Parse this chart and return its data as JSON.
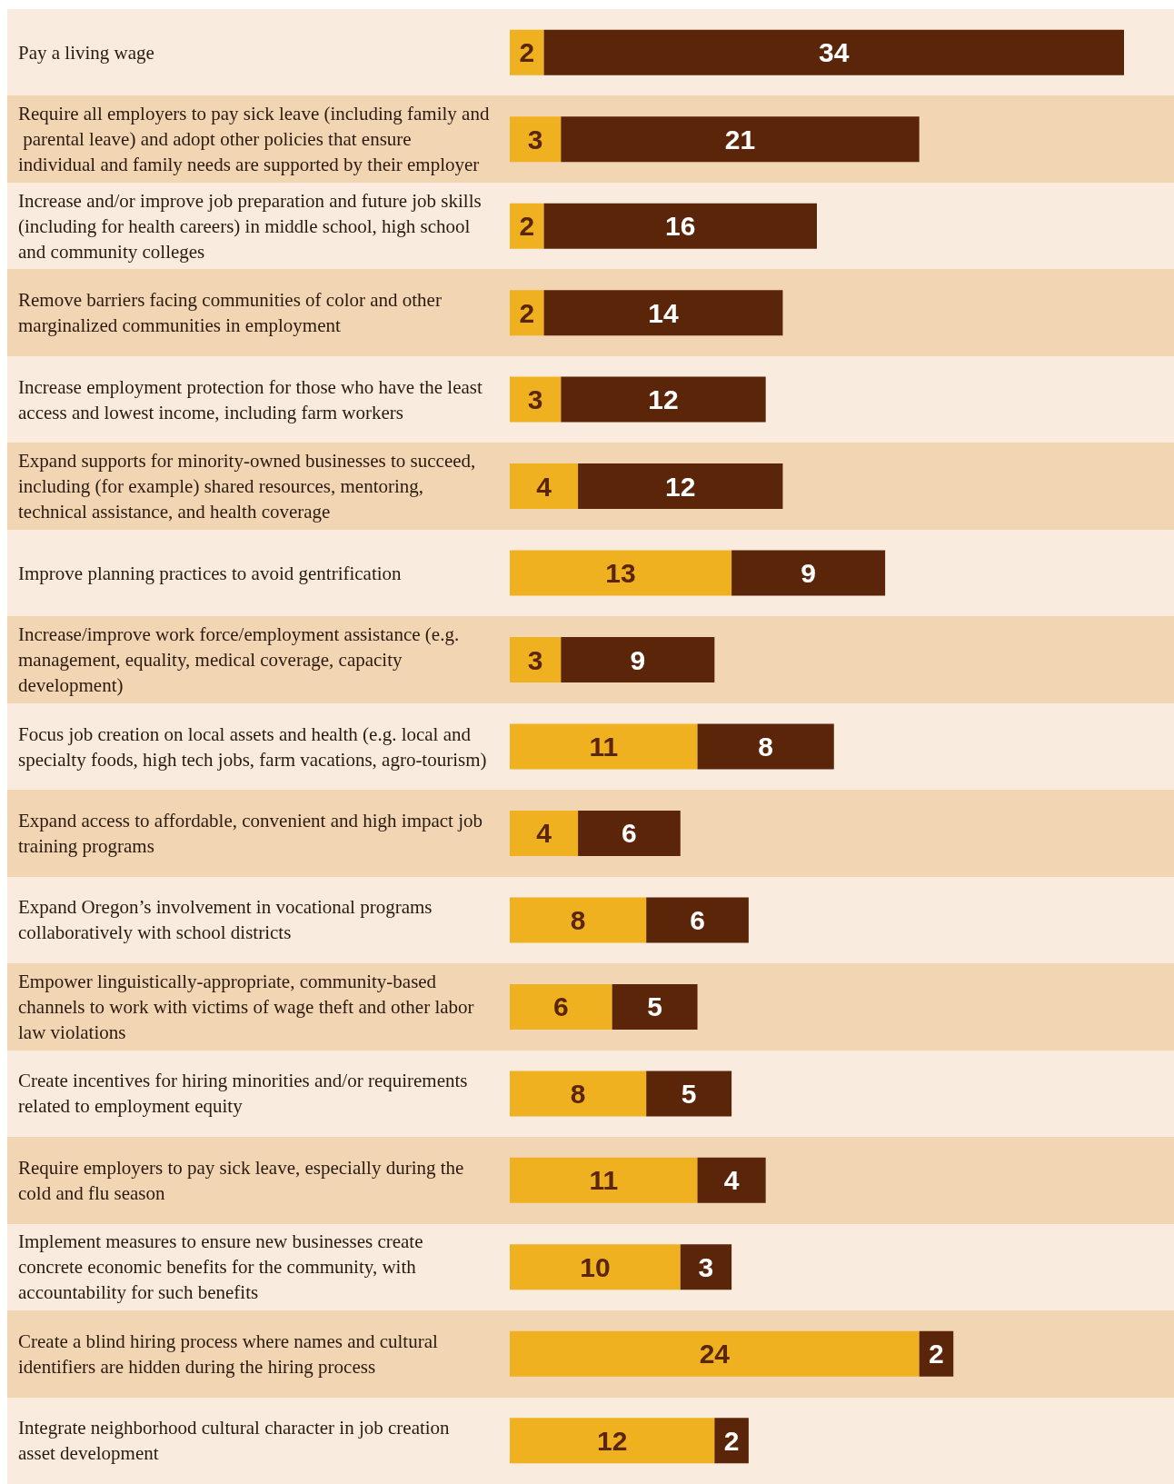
{
  "chart_data": {
    "type": "bar",
    "orientation": "horizontal",
    "stacked": true,
    "data_labels": true,
    "categories": [
      "Pay a living wage",
      "Require all employers to pay sick leave (including family and parental leave) and adopt other policies that ensure individual and family needs are supported by their employer",
      "Increase and/or improve job preparation and future job skills (including for health careers) in middle school, high school and community colleges",
      "Remove barriers facing communities of color and other marginalized communities in employment",
      "Increase employment protection for those who have the least access and lowest income, including farm workers",
      "Expand supports for minority-owned businesses to succeed, including (for example) shared resources, mentoring, technical assistance, and health coverage",
      "Improve planning practices to avoid gentrification",
      "Increase/improve work force/employment assistance (e.g. management, equality, medical coverage, capacity development)",
      "Focus job creation on local assets and health (e.g. local and specialty foods, high tech jobs, farm vacations, agro-tourism)",
      "Expand access to affordable, convenient and high impact job training programs",
      "Expand Oregon’s involvement in vocational programs collaboratively with school districts",
      "Empower linguistically-appropriate, community-based channels to work with victims of wage theft and other labor law violations",
      "Create incentives for hiring minorities and/or requirements related to employment equity",
      "Require employers to pay sick leave, especially during the cold and flu season",
      "Implement measures to ensure new businesses create concrete economic benefits for the community, with accountability for such benefits",
      "Create a blind hiring process where names and cultural identifiers are hidden during the hiring process",
      "Integrate neighborhood cultural character in job creation asset development"
    ],
    "series": [
      {
        "color": "#efb120",
        "values": [
          2,
          3,
          2,
          2,
          3,
          4,
          13,
          3,
          11,
          4,
          8,
          6,
          8,
          11,
          10,
          24,
          12
        ]
      },
      {
        "color": "#5a2508",
        "values": [
          34,
          21,
          16,
          14,
          12,
          12,
          9,
          9,
          8,
          6,
          6,
          5,
          5,
          4,
          3,
          2,
          2
        ]
      }
    ]
  }
}
